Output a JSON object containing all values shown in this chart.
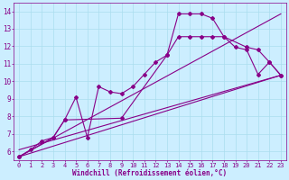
{
  "xlabel": "Windchill (Refroidissement éolien,°C)",
  "bg_color": "#cceeff",
  "grid_color": "#aaddee",
  "line_color": "#880088",
  "xlim": [
    -0.5,
    23.5
  ],
  "ylim": [
    5.5,
    14.5
  ],
  "xticks": [
    0,
    1,
    2,
    3,
    4,
    5,
    6,
    7,
    8,
    9,
    10,
    11,
    12,
    13,
    14,
    15,
    16,
    17,
    18,
    19,
    20,
    21,
    22,
    23
  ],
  "yticks": [
    6,
    7,
    8,
    9,
    10,
    11,
    12,
    13,
    14
  ],
  "line1_x": [
    0,
    1,
    2,
    3,
    4,
    5,
    6,
    7,
    8,
    9,
    10,
    11,
    12,
    13,
    14,
    15,
    16,
    17,
    18,
    19,
    20,
    21,
    22,
    23
  ],
  "line1_y": [
    5.7,
    6.1,
    6.6,
    6.8,
    7.8,
    9.1,
    6.8,
    9.7,
    9.4,
    9.3,
    9.7,
    10.4,
    11.1,
    11.5,
    13.85,
    13.85,
    13.85,
    13.6,
    12.55,
    11.95,
    11.8,
    10.4,
    11.1,
    10.35
  ],
  "line2_x": [
    0,
    3,
    4,
    9,
    13,
    14,
    15,
    16,
    17,
    18,
    20,
    21,
    22,
    23
  ],
  "line2_y": [
    5.7,
    6.8,
    7.8,
    7.9,
    11.5,
    12.55,
    12.55,
    12.55,
    12.55,
    12.55,
    11.95,
    11.8,
    11.1,
    10.35
  ],
  "line3_x": [
    0,
    23
  ],
  "line3_y": [
    5.7,
    10.35
  ],
  "line4_x": [
    0,
    23
  ],
  "line4_y": [
    6.1,
    10.35
  ],
  "line5_x": [
    0,
    23
  ],
  "line5_y": [
    5.7,
    13.85
  ],
  "marker": "D",
  "markersize": 2.0,
  "linewidth": 0.8,
  "tick_fontsize": 5.0,
  "xlabel_fontsize": 5.5
}
